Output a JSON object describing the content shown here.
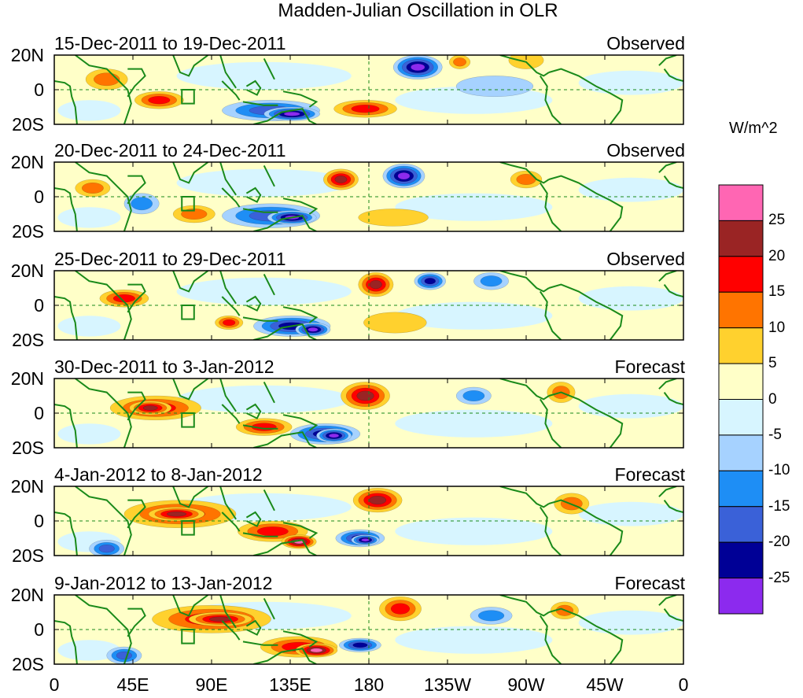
{
  "chart_data": {
    "type": "heatmap",
    "title": "Madden-Julian Oscillation in OLR",
    "variable": "OLR anomaly",
    "units": "W/m^2",
    "x_ticks": [
      "0",
      "45E",
      "90E",
      "135E",
      "180",
      "135W",
      "90W",
      "45W",
      "0"
    ],
    "y_ticks": [
      "20N",
      "0",
      "20S"
    ],
    "colorbar": {
      "levels": [
        "25",
        "20",
        "15",
        "10",
        "5",
        "0",
        "-5",
        "-10",
        "-15",
        "-20",
        "-25"
      ],
      "colors": [
        "#ff66b3",
        "#9a2424",
        "#ff0000",
        "#ff7400",
        "#ffd12e",
        "#ffffc8",
        "#d7f5ff",
        "#a6d2ff",
        "#1e8ef5",
        "#3a61d8",
        "#000096",
        "#8c2aee"
      ]
    },
    "panels": [
      {
        "date_range": "15-Dec-2011 to 19-Dec-2011",
        "kind": "Observed",
        "features": [
          {
            "lon": 208,
            "lat": 13,
            "rx": 14,
            "ry": 7,
            "value": -25
          },
          {
            "lon": 178,
            "lat": -11,
            "rx": 18,
            "ry": 5,
            "value": 15
          },
          {
            "lon": 60,
            "lat": -6,
            "rx": 14,
            "ry": 5,
            "value": 15
          },
          {
            "lon": 124,
            "lat": -12,
            "rx": 28,
            "ry": 6,
            "value": -15
          },
          {
            "lon": 136,
            "lat": -14,
            "rx": 16,
            "ry": 4,
            "value": -25
          },
          {
            "lon": 30,
            "lat": 6,
            "rx": 12,
            "ry": 6,
            "value": 10
          },
          {
            "lon": 232,
            "lat": 16,
            "rx": 6,
            "ry": 4,
            "value": 10
          },
          {
            "lon": 270,
            "lat": 17,
            "rx": 10,
            "ry": 5,
            "value": 5
          },
          {
            "lon": 300,
            "lat": -14,
            "rx": 26,
            "ry": 6,
            "value": 0
          },
          {
            "lon": 252,
            "lat": 2,
            "rx": 22,
            "ry": 6,
            "value": -5
          }
        ]
      },
      {
        "date_range": "20-Dec-2011 to 24-Dec-2011",
        "kind": "Observed",
        "features": [
          {
            "lon": 200,
            "lat": 12,
            "rx": 12,
            "ry": 7,
            "value": -25
          },
          {
            "lon": 164,
            "lat": 10,
            "rx": 10,
            "ry": 6,
            "value": 20
          },
          {
            "lon": 124,
            "lat": -11,
            "rx": 28,
            "ry": 7,
            "value": -15
          },
          {
            "lon": 136,
            "lat": -12,
            "rx": 14,
            "ry": 4,
            "value": -25
          },
          {
            "lon": 22,
            "lat": 5,
            "rx": 10,
            "ry": 5,
            "value": 10
          },
          {
            "lon": 270,
            "lat": 10,
            "rx": 9,
            "ry": 5,
            "value": 10
          },
          {
            "lon": 50,
            "lat": -4,
            "rx": 10,
            "ry": 6,
            "value": -10
          },
          {
            "lon": 194,
            "lat": -12,
            "rx": 20,
            "ry": 5,
            "value": 5
          },
          {
            "lon": 80,
            "lat": -10,
            "rx": 12,
            "ry": 5,
            "value": 10
          }
        ]
      },
      {
        "date_range": "25-Dec-2011 to 29-Dec-2011",
        "kind": "Observed",
        "features": [
          {
            "lon": 184,
            "lat": 12,
            "rx": 10,
            "ry": 7,
            "value": 20
          },
          {
            "lon": 215,
            "lat": 14,
            "rx": 9,
            "ry": 5,
            "value": -20
          },
          {
            "lon": 136,
            "lat": -12,
            "rx": 22,
            "ry": 6,
            "value": -20
          },
          {
            "lon": 148,
            "lat": -14,
            "rx": 10,
            "ry": 4,
            "value": -25
          },
          {
            "lon": 40,
            "lat": 4,
            "rx": 14,
            "ry": 5,
            "value": 15
          },
          {
            "lon": 100,
            "lat": -10,
            "rx": 8,
            "ry": 4,
            "value": 15
          },
          {
            "lon": 250,
            "lat": 14,
            "rx": 10,
            "ry": 5,
            "value": -10
          },
          {
            "lon": 195,
            "lat": -10,
            "rx": 18,
            "ry": 6,
            "value": 5
          }
        ]
      },
      {
        "date_range": "30-Dec-2011 to 3-Jan-2012",
        "kind": "Forecast",
        "features": [
          {
            "lon": 178,
            "lat": 10,
            "rx": 14,
            "ry": 8,
            "value": 20
          },
          {
            "lon": 58,
            "lat": 3,
            "rx": 26,
            "ry": 7,
            "value": 15
          },
          {
            "lon": 55,
            "lat": 3,
            "rx": 12,
            "ry": 4,
            "value": 20
          },
          {
            "lon": 120,
            "lat": -8,
            "rx": 16,
            "ry": 5,
            "value": 15
          },
          {
            "lon": 155,
            "lat": -12,
            "rx": 20,
            "ry": 6,
            "value": -20
          },
          {
            "lon": 160,
            "lat": -13,
            "rx": 10,
            "ry": 4,
            "value": -25
          },
          {
            "lon": 290,
            "lat": 12,
            "rx": 8,
            "ry": 6,
            "value": 10
          },
          {
            "lon": 240,
            "lat": 10,
            "rx": 10,
            "ry": 5,
            "value": -10
          }
        ]
      },
      {
        "date_range": "4-Jan-2012 to 8-Jan-2012",
        "kind": "Forecast",
        "features": [
          {
            "lon": 185,
            "lat": 12,
            "rx": 14,
            "ry": 7,
            "value": 20
          },
          {
            "lon": 72,
            "lat": 4,
            "rx": 32,
            "ry": 8,
            "value": 15
          },
          {
            "lon": 70,
            "lat": 4,
            "rx": 16,
            "ry": 4,
            "value": 20
          },
          {
            "lon": 125,
            "lat": -6,
            "rx": 20,
            "ry": 6,
            "value": 15
          },
          {
            "lon": 140,
            "lat": -12,
            "rx": 10,
            "ry": 4,
            "value": 25
          },
          {
            "lon": 175,
            "lat": -10,
            "rx": 14,
            "ry": 5,
            "value": -20
          },
          {
            "lon": 178,
            "lat": -11,
            "rx": 8,
            "ry": 3,
            "value": -25
          },
          {
            "lon": 30,
            "lat": -16,
            "rx": 10,
            "ry": 5,
            "value": -15
          },
          {
            "lon": 296,
            "lat": 10,
            "rx": 10,
            "ry": 6,
            "value": 10
          }
        ]
      },
      {
        "date_range": "9-Jan-2012 to 13-Jan-2012",
        "kind": "Forecast",
        "features": [
          {
            "lon": 198,
            "lat": 12,
            "rx": 12,
            "ry": 7,
            "value": 15
          },
          {
            "lon": 90,
            "lat": 6,
            "rx": 34,
            "ry": 8,
            "value": 15
          },
          {
            "lon": 95,
            "lat": 6,
            "rx": 18,
            "ry": 4,
            "value": 20
          },
          {
            "lon": 140,
            "lat": -10,
            "rx": 22,
            "ry": 6,
            "value": 15
          },
          {
            "lon": 150,
            "lat": -12,
            "rx": 12,
            "ry": 4,
            "value": 25
          },
          {
            "lon": 175,
            "lat": -9,
            "rx": 12,
            "ry": 4,
            "value": -20
          },
          {
            "lon": 40,
            "lat": -15,
            "rx": 10,
            "ry": 5,
            "value": -15
          },
          {
            "lon": 292,
            "lat": 11,
            "rx": 8,
            "ry": 5,
            "value": 10
          },
          {
            "lon": 250,
            "lat": 8,
            "rx": 12,
            "ry": 5,
            "value": -10
          }
        ]
      }
    ]
  }
}
